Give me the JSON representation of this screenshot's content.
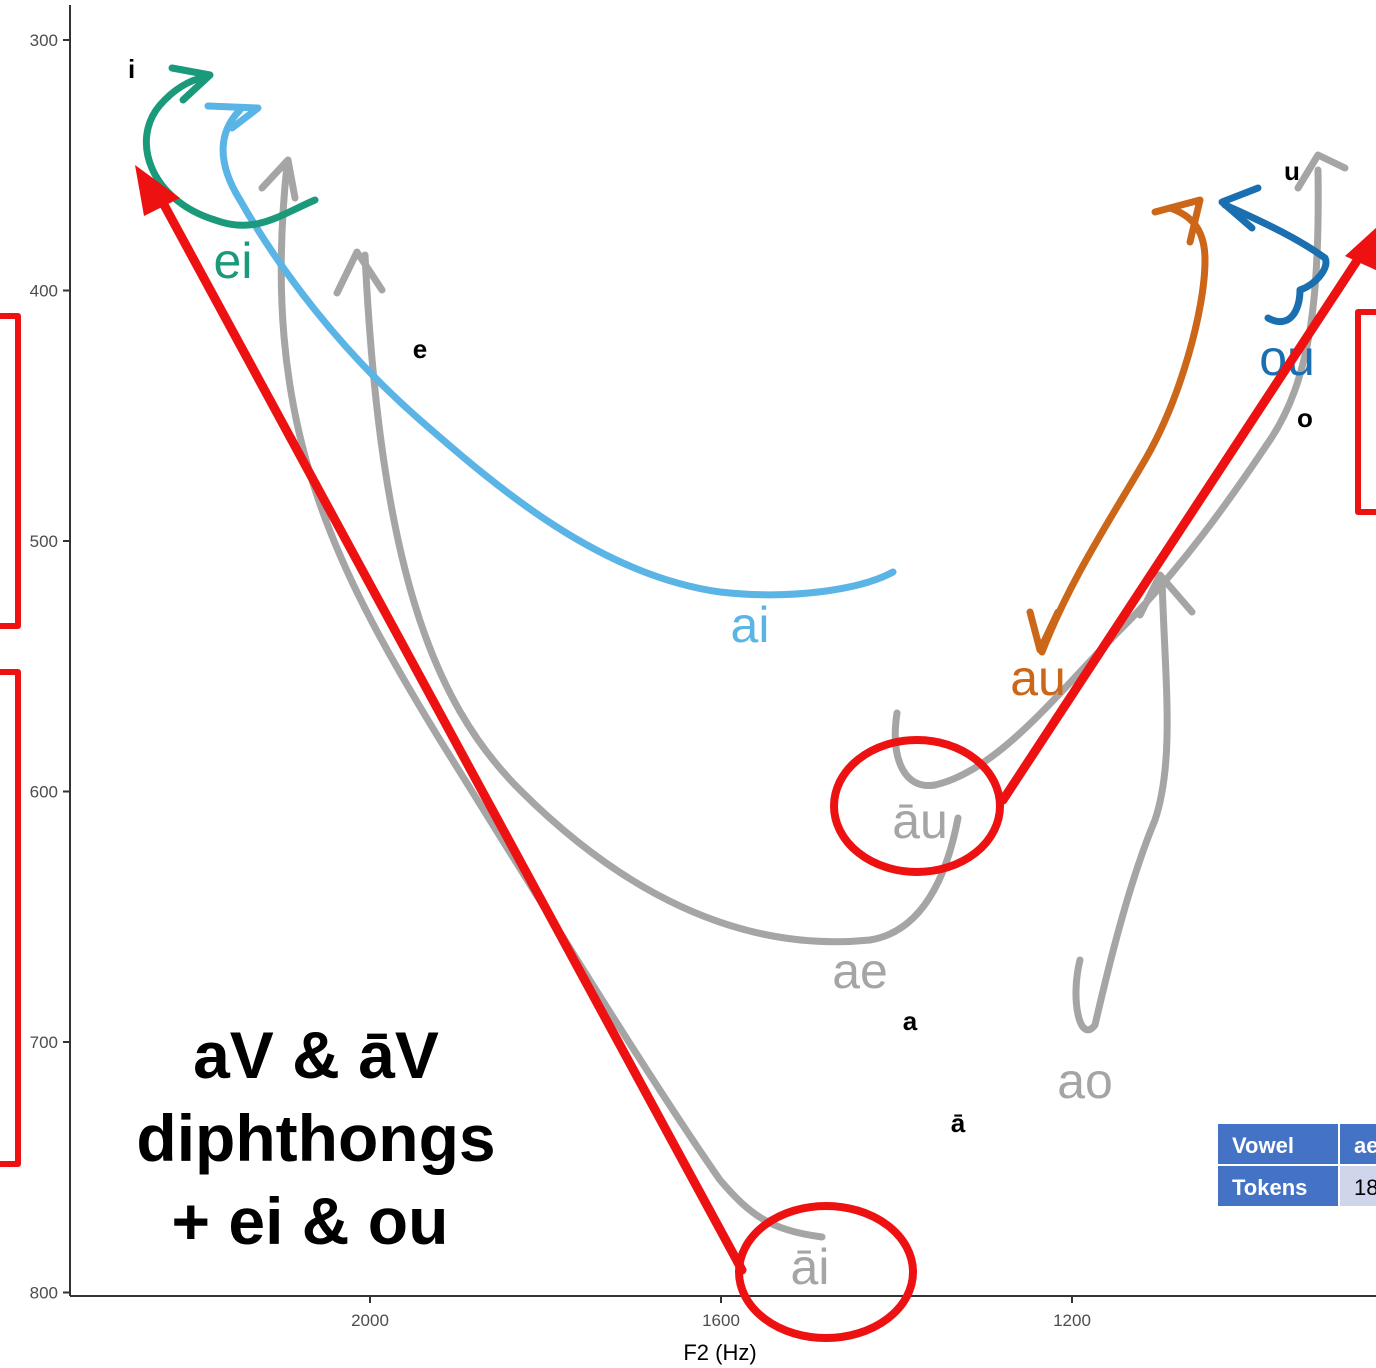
{
  "chart_data": {
    "type": "vowel-trajectory",
    "xlabel": "F2 (Hz)",
    "x_axis_reversed": true,
    "y_axis_reversed": true,
    "x_ticks": [
      2000,
      1600,
      1200
    ],
    "x_tick_labels": [
      "2000",
      "1600",
      "1200"
    ],
    "y_ticks": [
      300,
      400,
      500,
      600,
      700,
      800
    ],
    "y_tick_labels": [
      "300",
      "400",
      "500",
      "600",
      "700",
      "800"
    ],
    "grid": false,
    "monophthongs": [
      {
        "label": "i",
        "f2": 2270,
        "f1": 312
      },
      {
        "label": "e",
        "f2": 1940,
        "f1": 424
      },
      {
        "label": "u",
        "f2": 1075,
        "f1": 354
      },
      {
        "label": "o",
        "f2": 1060,
        "f1": 551
      },
      {
        "label": "a",
        "f2": 1510,
        "f1": 693
      },
      {
        "label": "ā",
        "f2": 1450,
        "f1": 753
      }
    ],
    "diphthongs": [
      {
        "label": "ei",
        "color": "#1a9a7a",
        "label_at": [
          2130,
          390
        ]
      },
      {
        "label": "ai",
        "color": "#5ab4e5",
        "label_at": [
          1620,
          535
        ]
      },
      {
        "label": "au",
        "color": "#cc6618",
        "label_at": [
          1220,
          608
        ]
      },
      {
        "label": "ou",
        "color": "#1a6fb0",
        "label_at": [
          1070,
          415
        ]
      },
      {
        "label": "āu",
        "color": "#a5a5a5",
        "label_at": [
          1520,
          647
        ]
      },
      {
        "label": "ae",
        "color": "#a5a5a5",
        "label_at": [
          1580,
          716
        ]
      },
      {
        "label": "ao",
        "color": "#a5a5a5",
        "label_at": [
          1300,
          765
        ]
      },
      {
        "label": "āi",
        "color": "#a5a5a5",
        "label_at": [
          1550,
          816
        ]
      }
    ]
  },
  "callout": {
    "lines": [
      "aV & āV",
      "diphthongs",
      "+ ei & ou"
    ]
  },
  "table": {
    "row1_header": "Vowel",
    "row1_cell": "ae",
    "row2_header": "Tokens",
    "row2_cell": "18"
  },
  "colors": {
    "highlight_red": "#ee1111",
    "table_header_blue": "#4472c4",
    "table_cell_bg": "#cfd5ea"
  }
}
